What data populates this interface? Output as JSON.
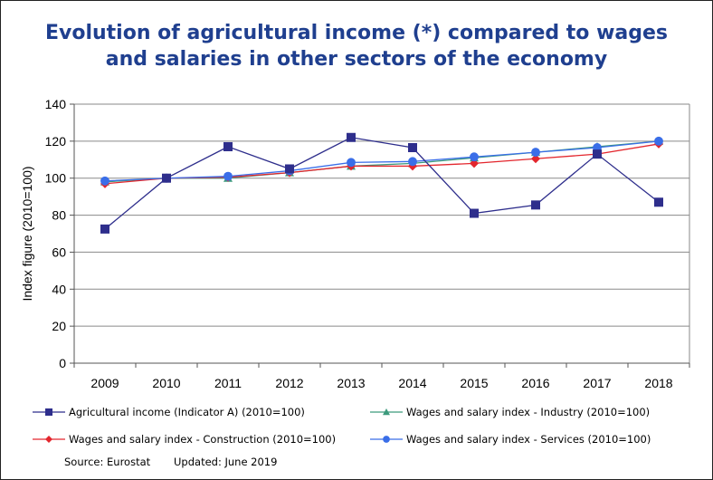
{
  "title_line1": "Evolution of agricultural income (*) compared to wages",
  "title_line2": "and salaries in other sectors of the economy",
  "source": "Source: Eurostat",
  "updated": "Updated: June 2019",
  "chart_data": {
    "type": "line",
    "title": "Evolution of agricultural income (*) compared to wages and salaries in other sectors of the economy",
    "xlabel": "",
    "ylabel": "Index figure (2010=100)",
    "ylim": [
      0,
      140
    ],
    "ytick_step": 20,
    "grid": "horizontal",
    "legend_position": "bottom",
    "categories": [
      "2009",
      "2010",
      "2011",
      "2012",
      "2013",
      "2014",
      "2015",
      "2016",
      "2017",
      "2018"
    ],
    "series": [
      {
        "name": "Agricultural income (Indicator A) (2010=100)",
        "color": "#2e2e8c",
        "marker": "square",
        "values": [
          72.5,
          100,
          117,
          105,
          122,
          116.5,
          81,
          85.5,
          113,
          87
        ]
      },
      {
        "name": "Wages and salary index - Industry (2010=100)",
        "color": "#3c9a7c",
        "marker": "triangle",
        "values": [
          98,
          100,
          100,
          103,
          106.5,
          108,
          111,
          114,
          117,
          120
        ]
      },
      {
        "name": "Wages and salary index - Construction (2010=100)",
        "color": "#e3262d",
        "marker": "diamond",
        "values": [
          97,
          100,
          100.5,
          103,
          106.5,
          106.5,
          108,
          110.5,
          113,
          118.5
        ]
      },
      {
        "name": "Wages and salary index - Services (2010=100)",
        "color": "#3a6ee8",
        "marker": "circle",
        "values": [
          98.5,
          100,
          101,
          104,
          108.5,
          109,
          111.5,
          114,
          116.5,
          120
        ]
      }
    ]
  }
}
